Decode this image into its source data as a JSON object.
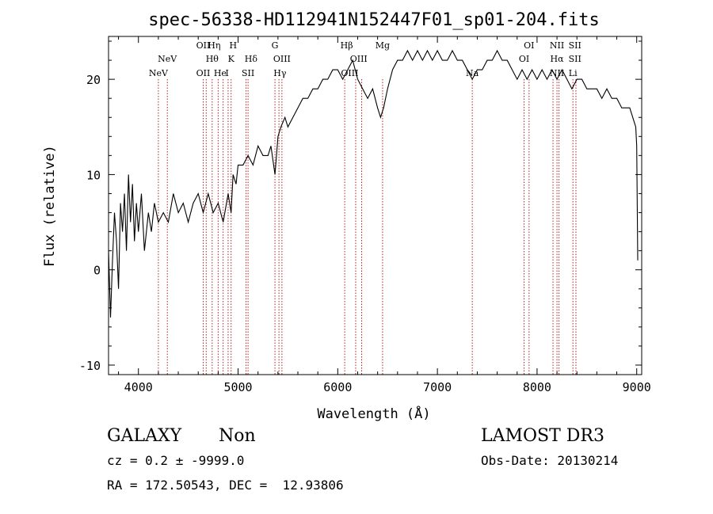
{
  "chart_data": {
    "type": "line",
    "title": "spec-56338-HD112941N152447F01_sp01-204.fits",
    "xlabel": "Wavelength (Å)",
    "ylabel": "Flux (relative)",
    "xlim": [
      3700,
      9050
    ],
    "ylim": [
      -11,
      24.5
    ],
    "xticks": [
      4000,
      5000,
      6000,
      7000,
      8000,
      9000
    ],
    "yticks": [
      -10,
      0,
      10,
      20
    ],
    "grid": false,
    "series": [
      {
        "name": "spectrum",
        "x": [
          3700,
          3720,
          3740,
          3760,
          3780,
          3800,
          3820,
          3840,
          3860,
          3880,
          3900,
          3920,
          3940,
          3960,
          3980,
          4000,
          4030,
          4060,
          4100,
          4130,
          4160,
          4200,
          4250,
          4300,
          4350,
          4400,
          4450,
          4500,
          4550,
          4600,
          4650,
          4700,
          4750,
          4800,
          4850,
          4900,
          4930,
          4950,
          4980,
          5000,
          5050,
          5100,
          5150,
          5200,
          5250,
          5300,
          5330,
          5370,
          5400,
          5430,
          5470,
          5500,
          5550,
          5600,
          5650,
          5700,
          5750,
          5800,
          5850,
          5900,
          5950,
          6000,
          6050,
          6100,
          6150,
          6200,
          6250,
          6300,
          6350,
          6400,
          6430,
          6460,
          6500,
          6550,
          6600,
          6650,
          6700,
          6750,
          6800,
          6850,
          6900,
          6950,
          7000,
          7050,
          7100,
          7150,
          7200,
          7250,
          7300,
          7350,
          7400,
          7450,
          7500,
          7550,
          7600,
          7650,
          7700,
          7750,
          7800,
          7850,
          7900,
          7950,
          8000,
          8050,
          8100,
          8150,
          8200,
          8250,
          8300,
          8350,
          8400,
          8450,
          8500,
          8550,
          8600,
          8650,
          8700,
          8750,
          8800,
          8850,
          8900,
          8930,
          8960,
          8990,
          9000,
          9010
        ],
        "y": [
          2,
          -5,
          1,
          6,
          3,
          -2,
          7,
          4,
          8,
          2,
          10,
          5,
          9,
          3,
          7,
          4,
          8,
          2,
          6,
          4,
          7,
          5,
          6,
          5,
          8,
          6,
          7,
          5,
          7,
          8,
          6,
          8,
          6,
          7,
          5,
          8,
          6,
          10,
          9,
          11,
          11,
          12,
          11,
          13,
          12,
          12,
          13,
          10,
          14,
          15,
          16,
          15,
          16,
          17,
          18,
          18,
          19,
          19,
          20,
          20,
          21,
          21,
          20,
          21,
          22,
          20,
          19,
          18,
          19,
          17,
          16,
          17,
          19,
          21,
          22,
          22,
          23,
          22,
          23,
          22,
          23,
          22,
          23,
          22,
          22,
          23,
          22,
          22,
          21,
          20,
          21,
          21,
          22,
          22,
          23,
          22,
          22,
          21,
          20,
          21,
          20,
          21,
          20,
          21,
          20,
          21,
          20,
          21,
          20,
          19,
          20,
          20,
          19,
          19,
          19,
          18,
          19,
          18,
          18,
          17,
          17,
          17,
          16,
          15,
          13,
          1
        ]
      }
    ],
    "lines": [
      {
        "name": "NeV",
        "wavelength": 4200
      },
      {
        "name": "NeV",
        "wavelength": 4290
      },
      {
        "name": "OII",
        "wavelength": 4650
      },
      {
        "name": "OII",
        "wavelength": 4680
      },
      {
        "name": "Hθ",
        "wavelength": 4740
      },
      {
        "name": "Hη",
        "wavelength": 4800
      },
      {
        "name": "HeI",
        "wavelength": 4850
      },
      {
        "name": "K",
        "wavelength": 4900
      },
      {
        "name": "H",
        "wavelength": 4930
      },
      {
        "name": "Hδ",
        "wavelength": 5080
      },
      {
        "name": "SII",
        "wavelength": 5100
      },
      {
        "name": "G",
        "wavelength": 5370
      },
      {
        "name": "Hγ",
        "wavelength": 5410
      },
      {
        "name": "OIII",
        "wavelength": 5440
      },
      {
        "name": "Hβ",
        "wavelength": 6070
      },
      {
        "name": "OIII",
        "wavelength": 6180
      },
      {
        "name": "OIII",
        "wavelength": 6240
      },
      {
        "name": "Mg",
        "wavelength": 6450
      },
      {
        "name": "Na",
        "wavelength": 7350
      },
      {
        "name": "OI",
        "wavelength": 7870
      },
      {
        "name": "OI",
        "wavelength": 7920
      },
      {
        "name": "NII",
        "wavelength": 8160
      },
      {
        "name": "Hα",
        "wavelength": 8200
      },
      {
        "name": "NII",
        "wavelength": 8220
      },
      {
        "name": "SII",
        "wavelength": 8360
      },
      {
        "name": "SII",
        "wavelength": 8390
      }
    ],
    "line_labels": [
      {
        "text": "NeV",
        "wavelength": 4200,
        "row": 3
      },
      {
        "text": "NeV",
        "wavelength": 4290,
        "row": 2
      },
      {
        "text": "OII",
        "wavelength": 4650,
        "row": 1
      },
      {
        "text": "OII",
        "wavelength": 4650,
        "row": 3
      },
      {
        "text": "Hη",
        "wavelength": 4760,
        "row": 1
      },
      {
        "text": "Hθ",
        "wavelength": 4740,
        "row": 2
      },
      {
        "text": "He",
        "wavelength": 4820,
        "row": 3
      },
      {
        "text": "I",
        "wavelength": 4890,
        "row": 3
      },
      {
        "text": "H",
        "wavelength": 4950,
        "row": 1
      },
      {
        "text": "K",
        "wavelength": 4930,
        "row": 2
      },
      {
        "text": "Hδ",
        "wavelength": 5130,
        "row": 2
      },
      {
        "text": "SII",
        "wavelength": 5100,
        "row": 3
      },
      {
        "text": "G",
        "wavelength": 5370,
        "row": 1
      },
      {
        "text": "OIII",
        "wavelength": 5440,
        "row": 2
      },
      {
        "text": "Hγ",
        "wavelength": 5420,
        "row": 3
      },
      {
        "text": "Hβ",
        "wavelength": 6090,
        "row": 1
      },
      {
        "text": "OIII",
        "wavelength": 6210,
        "row": 2
      },
      {
        "text": "OIII",
        "wavelength": 6120,
        "row": 3
      },
      {
        "text": "Mg",
        "wavelength": 6450,
        "row": 1
      },
      {
        "text": "Na",
        "wavelength": 7350,
        "row": 3
      },
      {
        "text": "OI",
        "wavelength": 7920,
        "row": 1
      },
      {
        "text": "OI",
        "wavelength": 7870,
        "row": 2
      },
      {
        "text": "NII",
        "wavelength": 8200,
        "row": 1
      },
      {
        "text": "Hα",
        "wavelength": 8200,
        "row": 2
      },
      {
        "text": "NII",
        "wavelength": 8200,
        "row": 3
      },
      {
        "text": "SII",
        "wavelength": 8380,
        "row": 1
      },
      {
        "text": "SII",
        "wavelength": 8380,
        "row": 2
      },
      {
        "text": "Li",
        "wavelength": 8360,
        "row": 3
      }
    ]
  },
  "info": {
    "class": "GALAXY",
    "subclass": "Non",
    "cz": "cz = 0.2 ± -9999.0",
    "radec": "RA = 172.50543, DEC =  12.93806",
    "survey": "LAMOST DR3",
    "obs_date": "Obs-Date: 20130214"
  },
  "colors": {
    "axis": "#000000",
    "spectrum": "#000000",
    "marker": "#b22222"
  }
}
